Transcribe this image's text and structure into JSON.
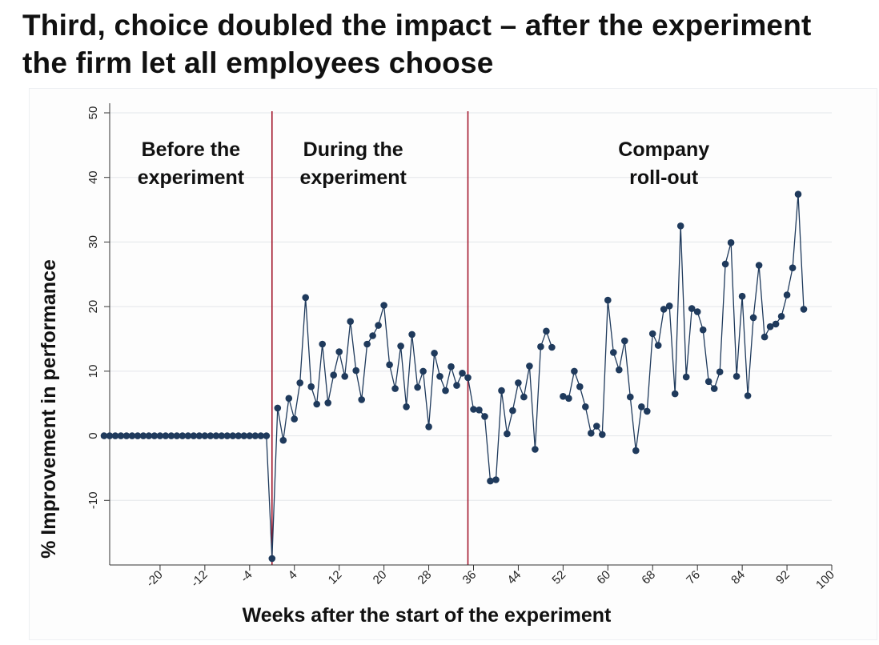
{
  "title": "Third, choice doubled the impact – after the experiment the firm let all employees choose",
  "chart_data": {
    "type": "line",
    "xlabel": "Weeks after the start of the experiment",
    "ylabel": "% Improvement in performance",
    "xlim": [
      -29,
      100
    ],
    "ylim": [
      -20,
      50
    ],
    "x_ticks": [
      -20,
      -12,
      -4,
      4,
      12,
      20,
      28,
      36,
      44,
      52,
      60,
      68,
      76,
      84,
      92,
      100
    ],
    "y_ticks": [
      -10,
      0,
      10,
      20,
      30,
      40,
      50
    ],
    "grid": true,
    "line_color": "#1f3a5c",
    "marker_color": "#1f3a5c",
    "divider_color": "#a3172c",
    "dividers": [
      0,
      35
    ],
    "regions": [
      {
        "lines": [
          "Before the",
          "experiment"
        ],
        "x": -14.5
      },
      {
        "lines": [
          "During the",
          "experiment"
        ],
        "x": 14.5
      },
      {
        "lines": [
          "Company",
          "roll-out"
        ],
        "x": 70
      }
    ],
    "series": [
      {
        "x": [
          -30,
          -29,
          -28,
          -27,
          -26,
          -25,
          -24,
          -23,
          -22,
          -21,
          -20,
          -19,
          -18,
          -17,
          -16,
          -15,
          -14,
          -13,
          -12,
          -11,
          -10,
          -9,
          -8,
          -7,
          -6,
          -5,
          -4,
          -3,
          -2,
          -1,
          0,
          1,
          2,
          3,
          4,
          5,
          6,
          7,
          8,
          9,
          10,
          11,
          12,
          13,
          14,
          15,
          16,
          17,
          18,
          19,
          20,
          21,
          22,
          23,
          24,
          25,
          26,
          27,
          28,
          29,
          30,
          31,
          32,
          33,
          34,
          35,
          36,
          37,
          38,
          39,
          40,
          41,
          42,
          43,
          44,
          45,
          46,
          47,
          48,
          49,
          50,
          51,
          52,
          53,
          54,
          55,
          56,
          57,
          58,
          59,
          60,
          61,
          62,
          63,
          64,
          65,
          66,
          67,
          68,
          69,
          70,
          71,
          72,
          73,
          74,
          75,
          76,
          77,
          78,
          79,
          80,
          81,
          82,
          83,
          84,
          85,
          86,
          87,
          88,
          89,
          90,
          91,
          92,
          93,
          94,
          95
        ],
        "y": [
          0,
          0,
          0,
          0,
          0,
          0,
          0,
          0,
          0,
          0,
          0,
          0,
          0,
          0,
          0,
          0,
          0,
          0,
          0,
          0,
          0,
          0,
          0,
          0,
          0,
          0,
          0,
          0,
          0,
          0,
          -19,
          4.3,
          -0.7,
          5.8,
          2.6,
          8.2,
          21.4,
          7.6,
          4.9,
          14.2,
          5.1,
          9.4,
          13.0,
          9.2,
          17.7,
          10.1,
          5.6,
          14.2,
          15.5,
          17.1,
          20.2,
          11.0,
          7.3,
          13.9,
          4.5,
          15.7,
          7.5,
          10.0,
          1.4,
          12.8,
          9.2,
          7.0,
          10.7,
          7.8,
          9.7,
          9.0,
          4.1,
          4.0,
          3.0,
          -7.0,
          -6.8,
          7.0,
          0.3,
          3.9,
          8.2,
          6.0,
          10.8,
          -2.1,
          13.8,
          16.2,
          13.7,
          null,
          6.1,
          5.8,
          10.0,
          7.6,
          4.5,
          0.4,
          1.5,
          0.2,
          21.0,
          12.9,
          10.2,
          14.7,
          6.0,
          -2.3,
          4.5,
          3.8,
          15.8,
          14.0,
          19.6,
          20.1,
          6.5,
          32.5,
          9.1,
          19.7,
          19.2,
          16.4,
          8.4,
          7.3,
          9.9,
          26.6,
          29.9,
          9.2,
          21.6,
          6.2,
          18.3,
          26.4,
          15.3,
          16.9,
          17.3,
          18.5,
          21.8,
          26.0,
          37.4,
          19.6
        ]
      }
    ]
  }
}
